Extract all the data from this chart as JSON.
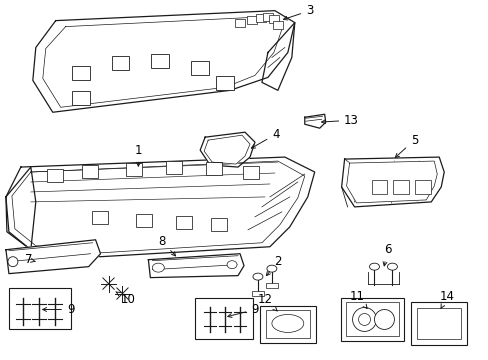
{
  "bg_color": "#ffffff",
  "line_color": "#1a1a1a",
  "label_color": "#000000",
  "label_fontsize": 8.5,
  "fig_w": 4.89,
  "fig_h": 3.6
}
